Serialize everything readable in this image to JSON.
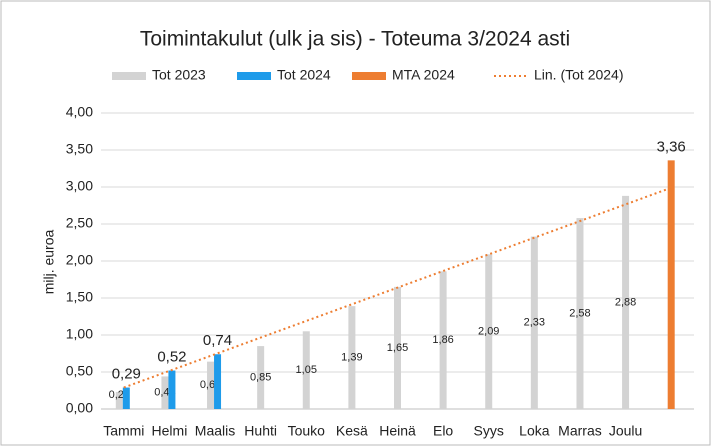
{
  "chart_data": {
    "type": "bar",
    "title": "Toimintakulut (ulk ja sis) - Toteuma 3/2024 asti",
    "y_label": "milj. euroa",
    "categories": [
      "Tammi",
      "Helmi",
      "Maalis",
      "Huhti",
      "Touko",
      "Kesä",
      "Heinä",
      "Elo",
      "Syys",
      "Loka",
      "Marras",
      "Joulu",
      null
    ],
    "series": [
      {
        "name": "Tot 2023",
        "color": "#d3d3d3",
        "type": "bar",
        "values": [
          0.23,
          0.44,
          0.64,
          0.85,
          1.05,
          1.39,
          1.65,
          1.86,
          2.09,
          2.33,
          2.58,
          2.88,
          null
        ],
        "value_labels": [
          "0,23",
          "0,44",
          "0,64",
          "0,85",
          "1,05",
          "1,39",
          "1,65",
          "1,86",
          "2,09",
          "2,33",
          "2,58",
          "2,88",
          null
        ]
      },
      {
        "name": "Tot 2024",
        "color": "#1e9bea",
        "type": "bar",
        "values": [
          0.29,
          0.52,
          0.74,
          null,
          null,
          null,
          null,
          null,
          null,
          null,
          null,
          null,
          null
        ],
        "value_labels": [
          "0,29",
          "0,52",
          "0,74",
          null,
          null,
          null,
          null,
          null,
          null,
          null,
          null,
          null,
          null
        ]
      },
      {
        "name": "MTA 2024",
        "color": "#ed7d31",
        "type": "bar",
        "values": [
          null,
          null,
          null,
          null,
          null,
          null,
          null,
          null,
          null,
          null,
          null,
          null,
          3.36
        ],
        "value_labels": [
          null,
          null,
          null,
          null,
          null,
          null,
          null,
          null,
          null,
          null,
          null,
          null,
          "3,36"
        ]
      },
      {
        "name": "Lin. (Tot 2024)",
        "color": "#ed7d31",
        "type": "line",
        "dash": "dotted",
        "values": [
          0.29,
          0.515,
          0.74,
          0.965,
          1.19,
          1.415,
          1.64,
          1.865,
          2.09,
          2.315,
          2.54,
          2.765,
          2.99
        ]
      }
    ],
    "ylim": [
      0,
      4
    ],
    "yticks": [
      {
        "value": 0,
        "label": "0,00"
      },
      {
        "value": 0.5,
        "label": "0,50"
      },
      {
        "value": 1,
        "label": "1,00"
      },
      {
        "value": 1.5,
        "label": "1,50"
      },
      {
        "value": 2,
        "label": "2,00"
      },
      {
        "value": 2.5,
        "label": "2,50"
      },
      {
        "value": 3,
        "label": "3,00"
      },
      {
        "value": 3.5,
        "label": "3,50"
      },
      {
        "value": 4,
        "label": "4,00"
      }
    ],
    "grid": true,
    "legend": "top"
  }
}
